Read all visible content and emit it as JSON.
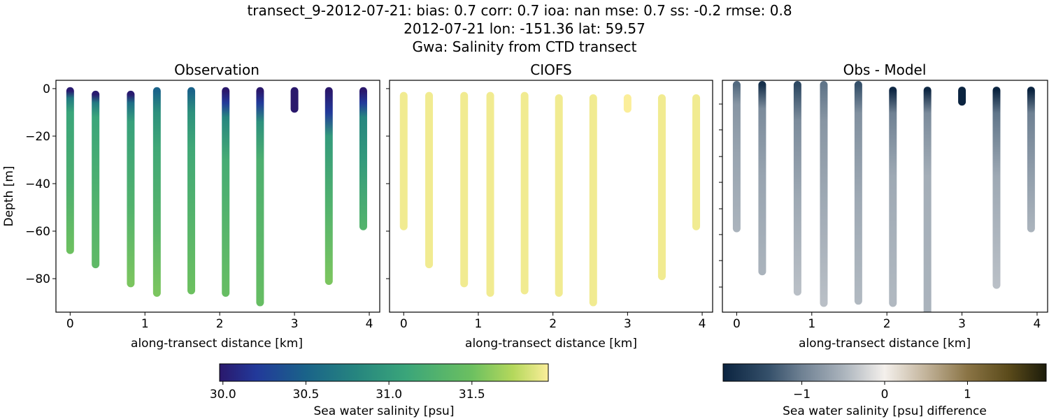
{
  "title_lines": [
    "transect_9-2012-07-21: bias: 0.7  corr: 0.7  ioa: nan  mse: 0.7  ss: -0.2  rmse: 0.8",
    "2012-07-21 lon: -151.36 lat: 59.57",
    "Gwa: Salinity from CTD transect"
  ],
  "chart_data": [
    {
      "type": "scatter",
      "title": "Observation",
      "xlabel": "along-transect distance [km]",
      "ylabel": "Depth [m]",
      "xlim": [
        -0.19,
        4.14
      ],
      "ylim": [
        -94.1,
        3.5
      ],
      "xticks": [
        0,
        1,
        2,
        3,
        4
      ],
      "xtick_labels": [
        "0",
        "1",
        "2",
        "3",
        "4"
      ],
      "yticks": [
        0,
        -20,
        -40,
        -60,
        -80
      ],
      "ytick_labels": [
        "0",
        "−20",
        "−40",
        "−60",
        "−80"
      ],
      "colormap": "salinity",
      "columns": [
        {
          "x": 0,
          "top": -1,
          "bottom": -68,
          "profile": [
            [
              -1,
              30.0
            ],
            [
              -4,
              30.7
            ],
            [
              -10,
              31.1
            ],
            [
              -40,
              31.25
            ],
            [
              -68,
              31.5
            ]
          ]
        },
        {
          "x": 0.34,
          "top": -2.5,
          "bottom": -74,
          "profile": [
            [
              -2.5,
              30.0
            ],
            [
              -6,
              30.7
            ],
            [
              -12,
              31.1
            ],
            [
              -50,
              31.3
            ],
            [
              -74,
              31.4
            ]
          ]
        },
        {
          "x": 0.81,
          "top": -2.5,
          "bottom": -82,
          "profile": [
            [
              -2.5,
              30.0
            ],
            [
              -6,
              30.6
            ],
            [
              -14,
              31.05
            ],
            [
              -50,
              31.3
            ],
            [
              -82,
              31.55
            ]
          ]
        },
        {
          "x": 1.16,
          "top": -1,
          "bottom": -86,
          "profile": [
            [
              -1,
              30.5
            ],
            [
              -10,
              30.9
            ],
            [
              -25,
              31.15
            ],
            [
              -60,
              31.35
            ],
            [
              -86,
              31.55
            ]
          ]
        },
        {
          "x": 1.62,
          "top": -1,
          "bottom": -85,
          "profile": [
            [
              -1,
              30.5
            ],
            [
              -10,
              30.9
            ],
            [
              -25,
              31.15
            ],
            [
              -60,
              31.35
            ],
            [
              -85,
              31.5
            ]
          ]
        },
        {
          "x": 2.08,
          "top": -1,
          "bottom": -86,
          "profile": [
            [
              -1,
              29.98
            ],
            [
              -6,
              30.2
            ],
            [
              -12,
              30.8
            ],
            [
              -30,
              31.2
            ],
            [
              -86,
              31.45
            ]
          ]
        },
        {
          "x": 2.54,
          "top": -1,
          "bottom": -90,
          "profile": [
            [
              -1,
              29.98
            ],
            [
              -6,
              30.2
            ],
            [
              -14,
              30.9
            ],
            [
              -30,
              31.25
            ],
            [
              -90,
              31.45
            ]
          ]
        },
        {
          "x": 3.0,
          "top": -1,
          "bottom": -8.5,
          "profile": [
            [
              -1,
              29.98
            ],
            [
              -8.5,
              29.98
            ]
          ]
        },
        {
          "x": 3.46,
          "top": -1,
          "bottom": -81,
          "profile": [
            [
              -1,
              29.98
            ],
            [
              -10,
              30.2
            ],
            [
              -20,
              31.0
            ],
            [
              -50,
              31.3
            ],
            [
              -81,
              31.55
            ]
          ]
        },
        {
          "x": 3.92,
          "top": -1,
          "bottom": -58,
          "profile": [
            [
              -1,
              29.98
            ],
            [
              -6,
              30.2
            ],
            [
              -12,
              30.8
            ],
            [
              -30,
              31.0
            ],
            [
              -58,
              31.3
            ]
          ]
        }
      ]
    },
    {
      "type": "scatter",
      "title": "CIOFS",
      "xlabel": "along-transect distance [km]",
      "xlim": [
        -0.19,
        4.14
      ],
      "ylim": [
        -94.1,
        3.5
      ],
      "xticks": [
        0,
        1,
        2,
        3,
        4
      ],
      "xtick_labels": [
        "0",
        "1",
        "2",
        "3",
        "4"
      ],
      "yticks": [
        0,
        -20,
        -40,
        -60,
        -80
      ],
      "colormap": "salinity",
      "columns": [
        {
          "x": 0,
          "top": -3,
          "bottom": -58,
          "profile": [
            [
              -3,
              31.93
            ],
            [
              -58,
              31.93
            ]
          ]
        },
        {
          "x": 0.34,
          "top": -3,
          "bottom": -74,
          "profile": [
            [
              -3,
              31.93
            ],
            [
              -74,
              31.93
            ]
          ]
        },
        {
          "x": 0.81,
          "top": -3,
          "bottom": -82,
          "profile": [
            [
              -3,
              31.93
            ],
            [
              -82,
              31.93
            ]
          ]
        },
        {
          "x": 1.16,
          "top": -3,
          "bottom": -86,
          "profile": [
            [
              -3,
              31.93
            ],
            [
              -86,
              31.93
            ]
          ]
        },
        {
          "x": 1.62,
          "top": -3,
          "bottom": -85,
          "profile": [
            [
              -3,
              31.93
            ],
            [
              -85,
              31.93
            ]
          ]
        },
        {
          "x": 2.08,
          "top": -4,
          "bottom": -86,
          "profile": [
            [
              -4,
              31.93
            ],
            [
              -86,
              31.93
            ]
          ]
        },
        {
          "x": 2.54,
          "top": -4,
          "bottom": -90,
          "profile": [
            [
              -4,
              31.93
            ],
            [
              -90,
              31.93
            ]
          ]
        },
        {
          "x": 3.0,
          "top": -4,
          "bottom": -8.5,
          "profile": [
            [
              -4,
              31.96
            ],
            [
              -8.5,
              31.96
            ]
          ]
        },
        {
          "x": 3.46,
          "top": -4,
          "bottom": -79,
          "profile": [
            [
              -4,
              31.93
            ],
            [
              -79,
              31.93
            ]
          ]
        },
        {
          "x": 3.92,
          "top": -4,
          "bottom": -58,
          "profile": [
            [
              -4,
              31.93
            ],
            [
              -58,
              31.93
            ]
          ]
        }
      ]
    },
    {
      "type": "scatter",
      "title": "Obs - Model",
      "xlabel": "along-transect distance [km]",
      "xlim": [
        -0.19,
        4.14
      ],
      "ylim": [
        -100,
        2.5
      ],
      "xticks": [
        0,
        1,
        2,
        3,
        4
      ],
      "xtick_labels": [
        "0",
        "1",
        "2",
        "3",
        "4"
      ],
      "yticks": [
        -8,
        -19.4,
        -31.2,
        -42.6,
        -54.3,
        -65.7,
        -77.2,
        -88.9
      ],
      "colormap": "difference",
      "columns": [
        {
          "x": 0,
          "top": 0.5,
          "bottom": -63,
          "profile": [
            [
              0.5,
              -1.2
            ],
            [
              -8,
              -0.8
            ],
            [
              -30,
              -0.65
            ],
            [
              -63,
              -0.5
            ]
          ]
        },
        {
          "x": 0.34,
          "top": 0.5,
          "bottom": -82,
          "profile": [
            [
              0.5,
              -1.8
            ],
            [
              -10,
              -0.9
            ],
            [
              -40,
              -0.65
            ],
            [
              -82,
              -0.5
            ]
          ]
        },
        {
          "x": 0.81,
          "top": 0.5,
          "bottom": -91,
          "profile": [
            [
              0.5,
              -1.5
            ],
            [
              -15,
              -0.9
            ],
            [
              -50,
              -0.6
            ],
            [
              -91,
              -0.4
            ]
          ]
        },
        {
          "x": 1.16,
          "top": 0.5,
          "bottom": -96,
          "profile": [
            [
              0.5,
              -1.1
            ],
            [
              -15,
              -0.8
            ],
            [
              -50,
              -0.6
            ],
            [
              -96,
              -0.4
            ]
          ]
        },
        {
          "x": 1.62,
          "top": 0.5,
          "bottom": -95,
          "profile": [
            [
              0.5,
              -1.4
            ],
            [
              -12,
              -0.85
            ],
            [
              -50,
              -0.6
            ],
            [
              -95,
              -0.45
            ]
          ]
        },
        {
          "x": 2.08,
          "top": -2,
          "bottom": -96,
          "profile": [
            [
              -2,
              -1.9
            ],
            [
              -12,
              -1.0
            ],
            [
              -40,
              -0.6
            ],
            [
              -96,
              -0.45
            ]
          ]
        },
        {
          "x": 2.54,
          "top": -2,
          "bottom": -100,
          "profile": [
            [
              -2,
              -1.9
            ],
            [
              -12,
              -0.9
            ],
            [
              -40,
              -0.55
            ],
            [
              -100,
              -0.5
            ]
          ]
        },
        {
          "x": 3.0,
          "top": -2,
          "bottom": -7,
          "profile": [
            [
              -2,
              -1.95
            ],
            [
              -7,
              -1.95
            ]
          ]
        },
        {
          "x": 3.46,
          "top": -2,
          "bottom": -88,
          "profile": [
            [
              -2,
              -1.95
            ],
            [
              -12,
              -1.1
            ],
            [
              -40,
              -0.6
            ],
            [
              -88,
              -0.4
            ]
          ]
        },
        {
          "x": 3.92,
          "top": -2,
          "bottom": -63,
          "profile": [
            [
              -2,
              -1.95
            ],
            [
              -12,
              -1.0
            ],
            [
              -40,
              -0.7
            ],
            [
              -63,
              -0.5
            ]
          ]
        }
      ]
    }
  ],
  "colorbars": [
    {
      "label": "Sea water salinity [psu]",
      "range": [
        29.98,
        31.96
      ],
      "ticks": [
        30.0,
        30.5,
        31.0,
        31.5
      ],
      "tick_labels": [
        "30.0",
        "30.5",
        "31.0",
        "31.5"
      ],
      "stops": [
        [
          29.98,
          "#2a186c"
        ],
        [
          30.2,
          "#22399a"
        ],
        [
          30.5,
          "#1a6389"
        ],
        [
          30.8,
          "#26857f"
        ],
        [
          31.1,
          "#3aa57a"
        ],
        [
          31.5,
          "#6cc060"
        ],
        [
          31.75,
          "#b5d85c"
        ],
        [
          31.96,
          "#fbee9a"
        ]
      ]
    },
    {
      "label": "Sea water salinity [psu] difference",
      "range": [
        -1.95,
        1.95
      ],
      "ticks": [
        -1,
        0,
        1
      ],
      "tick_labels": [
        "−1",
        "0",
        "1"
      ],
      "stops": [
        [
          -1.95,
          "#0b2440"
        ],
        [
          -1.4,
          "#35506a"
        ],
        [
          -1,
          "#6f8193"
        ],
        [
          -0.5,
          "#aab3bc"
        ],
        [
          0,
          "#f4f0ec"
        ],
        [
          0.5,
          "#c2b39a"
        ],
        [
          1,
          "#8a7445"
        ],
        [
          1.5,
          "#5a4a1a"
        ],
        [
          1.95,
          "#1c1c0a"
        ]
      ]
    }
  ]
}
